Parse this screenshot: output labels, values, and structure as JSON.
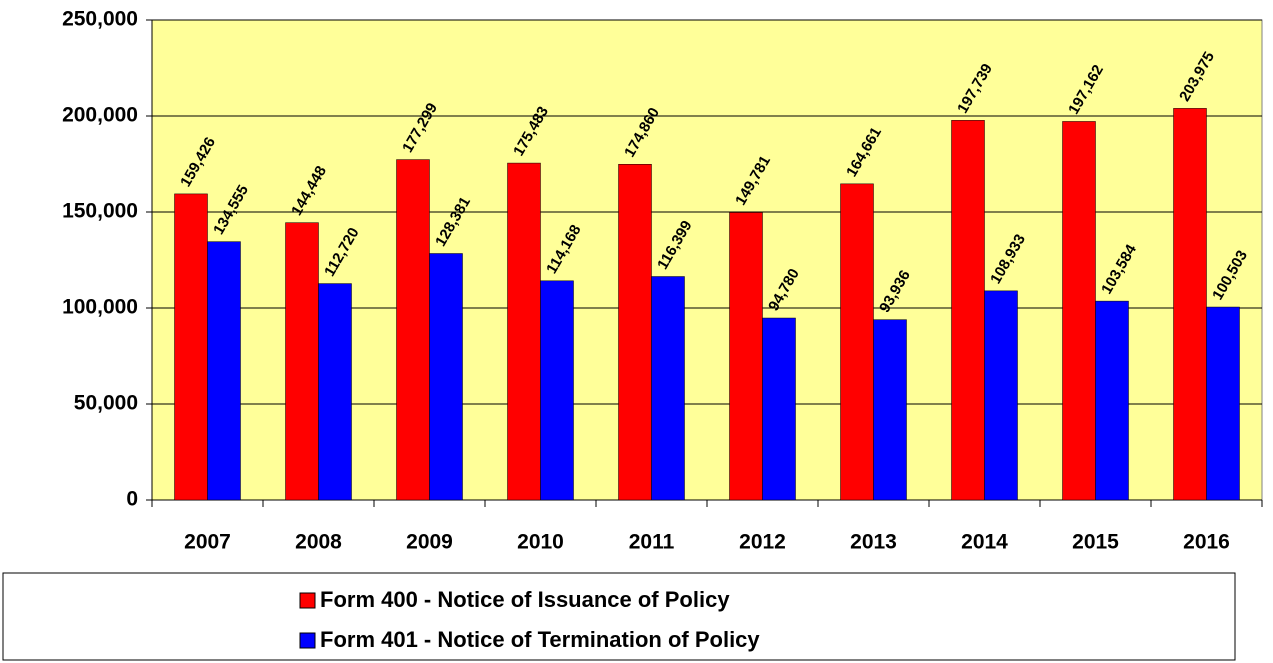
{
  "chart_data": {
    "type": "bar",
    "categories": [
      "2007",
      "2008",
      "2009",
      "2010",
      "2011",
      "2012",
      "2013",
      "2014",
      "2015",
      "2016"
    ],
    "series": [
      {
        "name": "Form 400 - Notice of Issuance of Policy",
        "color": "#ff0000",
        "values": [
          159426,
          144448,
          177299,
          175483,
          174860,
          149781,
          164661,
          197739,
          197162,
          203975
        ],
        "value_labels": [
          "159,426",
          "144,448",
          "177,299",
          "175,483",
          "174,860",
          "149,781",
          "164,661",
          "197,739",
          "197,162",
          "203,975"
        ]
      },
      {
        "name": "Form 401 - Notice of Termination of Policy",
        "color": "#0000ff",
        "values": [
          134555,
          112720,
          128381,
          114168,
          116399,
          94780,
          93936,
          108933,
          103584,
          100503
        ],
        "value_labels": [
          "134,555",
          "112,720",
          "128,381",
          "114,168",
          "116,399",
          "94,780",
          "93,936",
          "108,933",
          "103,584",
          "100,503"
        ]
      }
    ],
    "ylim": [
      0,
      250000
    ],
    "yticks": [
      0,
      {
        "value": 50000,
        "label": "50,000"
      },
      {
        "value": 100000,
        "label": "100,000"
      },
      {
        "value": 150000,
        "label": "150,000"
      },
      {
        "value": 200000,
        "label": "200,000"
      },
      {
        "value": 250000,
        "label": "250,000"
      }
    ],
    "grid": true,
    "background": "#ffff99"
  }
}
